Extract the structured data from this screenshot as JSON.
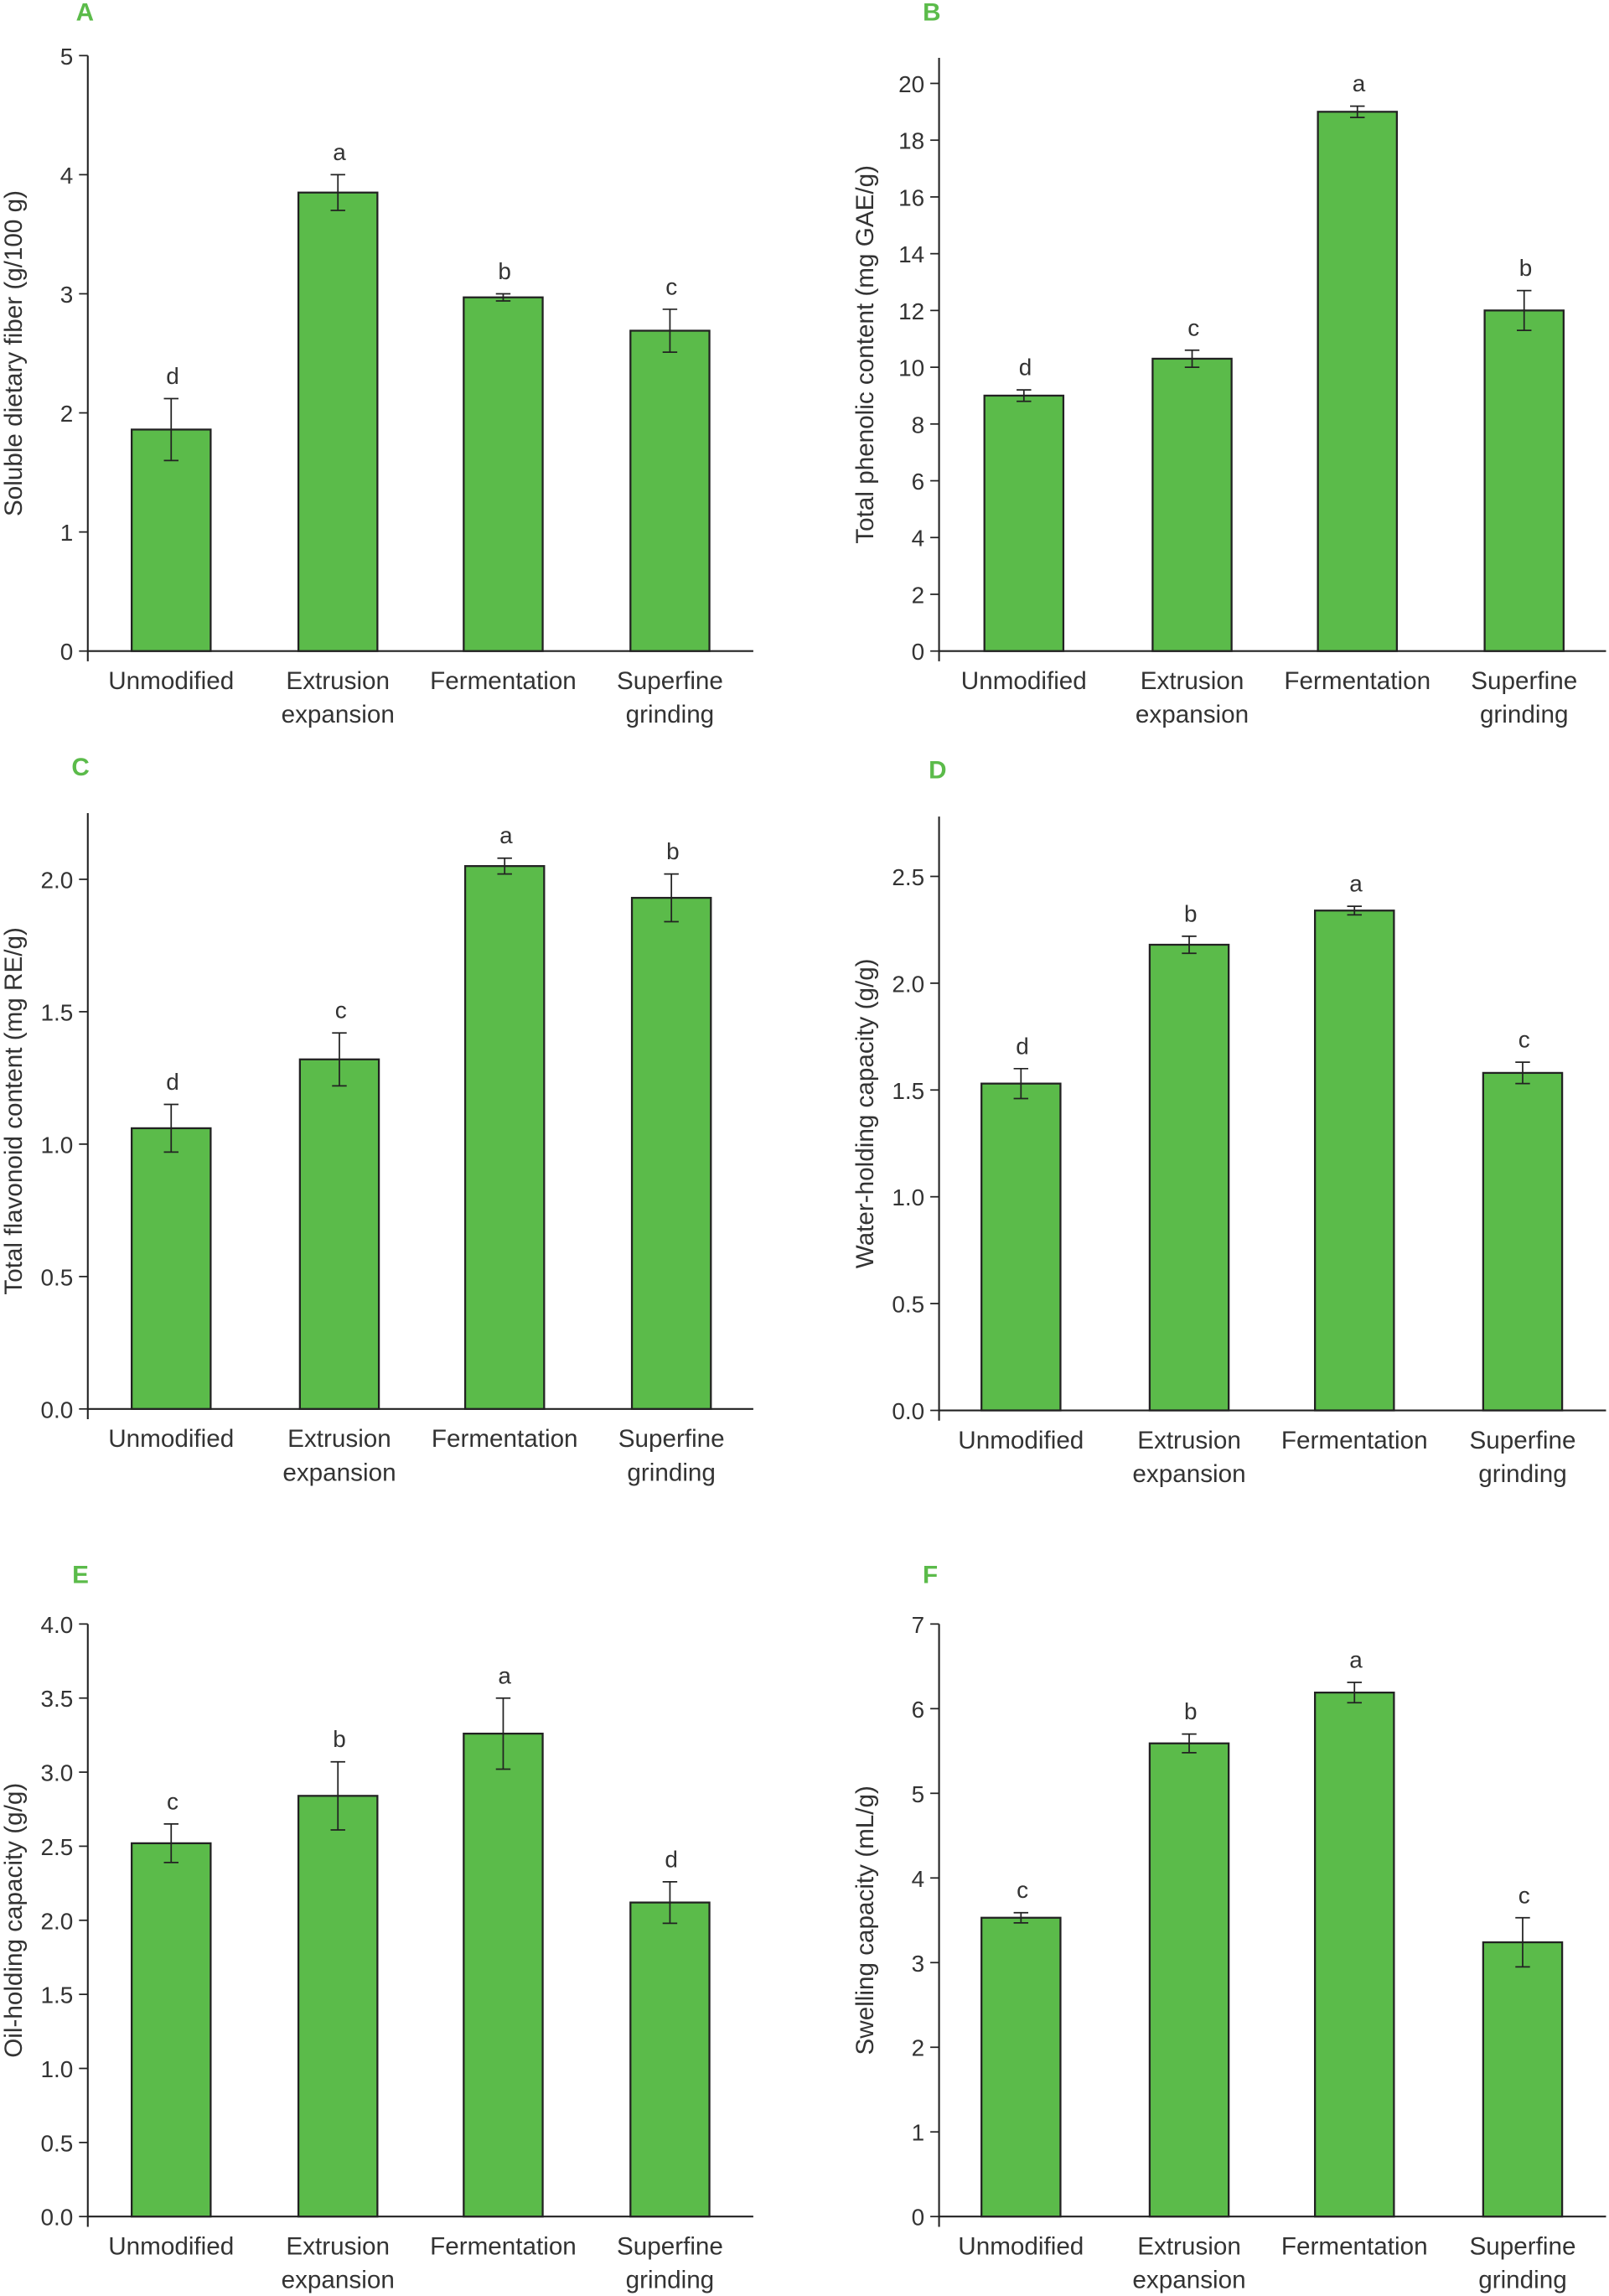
{
  "colors": {
    "bar": "#5bbb4a",
    "stroke": "#222222",
    "panel_label": "#5bbb4a"
  },
  "chart_data": [
    {
      "panel": "A",
      "type": "bar",
      "ylabel": "Soluble dietary fiber (g/100 g)",
      "categories": [
        "Unmodified",
        "Extrusion expansion",
        "Fermentation",
        "Superfine grinding"
      ],
      "values": [
        1.86,
        3.85,
        2.97,
        2.69
      ],
      "errors": [
        0.26,
        0.15,
        0.03,
        0.18
      ],
      "letters": [
        "d",
        "a",
        "b",
        "c"
      ],
      "ylim": [
        0,
        5
      ],
      "yticks": [
        0,
        1,
        2,
        3,
        4,
        5
      ],
      "tick_decimals": 0,
      "axis_top": 5
    },
    {
      "panel": "B",
      "type": "bar",
      "ylabel": "Total phenolic content (mg GAE/g)",
      "categories": [
        "Unmodified",
        "Extrusion expansion",
        "Fermentation",
        "Superfine grinding"
      ],
      "values": [
        9.0,
        10.3,
        19.0,
        12.0
      ],
      "errors": [
        0.2,
        0.3,
        0.2,
        0.7
      ],
      "letters": [
        "d",
        "c",
        "a",
        "b"
      ],
      "ylim": [
        0,
        20
      ],
      "yticks": [
        0,
        2,
        4,
        6,
        8,
        10,
        12,
        14,
        16,
        18,
        20
      ],
      "tick_decimals": 0,
      "axis_top": 20.9
    },
    {
      "panel": "C",
      "type": "bar",
      "ylabel": "Total flavonoid content (mg RE/g)",
      "categories": [
        "Unmodified",
        "Extrusion expansion",
        "Fermentation",
        "Superfine grinding"
      ],
      "values": [
        1.06,
        1.32,
        2.05,
        1.93
      ],
      "errors": [
        0.09,
        0.1,
        0.03,
        0.09
      ],
      "letters": [
        "d",
        "c",
        "a",
        "b"
      ],
      "ylim": [
        0,
        2.0
      ],
      "yticks": [
        0,
        0.5,
        1.0,
        1.5,
        2.0
      ],
      "tick_decimals": 1,
      "axis_top": 2.25
    },
    {
      "panel": "D",
      "type": "bar",
      "ylabel": "Water-holding capacity (g/g)",
      "categories": [
        "Unmodified",
        "Extrusion expansion",
        "Fermentation",
        "Superfine grinding"
      ],
      "values": [
        1.53,
        2.18,
        2.34,
        1.58
      ],
      "errors": [
        0.07,
        0.04,
        0.02,
        0.05
      ],
      "letters": [
        "d",
        "b",
        "a",
        "c"
      ],
      "ylim": [
        0,
        2.5
      ],
      "yticks": [
        0,
        0.5,
        1.0,
        1.5,
        2.0,
        2.5
      ],
      "tick_decimals": 1,
      "axis_top": 2.78
    },
    {
      "panel": "E",
      "type": "bar",
      "ylabel": "Oil-holding capacity (g/g)",
      "categories": [
        "Unmodified",
        "Extrusion expansion",
        "Fermentation",
        "Superfine grinding"
      ],
      "values": [
        2.52,
        2.84,
        3.26,
        2.12
      ],
      "errors": [
        0.13,
        0.23,
        0.24,
        0.14
      ],
      "letters": [
        "c",
        "b",
        "a",
        "d"
      ],
      "ylim": [
        0,
        4.0
      ],
      "yticks": [
        0,
        0.5,
        1.0,
        1.5,
        2.0,
        2.5,
        3.0,
        3.5,
        4.0
      ],
      "tick_decimals": 1,
      "axis_top": 4.0
    },
    {
      "panel": "F",
      "type": "bar",
      "ylabel": "Swelling capacity (mL/g)",
      "categories": [
        "Unmodified",
        "Extrusion expansion",
        "Fermentation",
        "Superfine grinding"
      ],
      "values": [
        3.53,
        5.59,
        6.19,
        3.24
      ],
      "errors": [
        0.06,
        0.11,
        0.12,
        0.29
      ],
      "letters": [
        "c",
        "b",
        "a",
        "c"
      ],
      "ylim": [
        0,
        7
      ],
      "yticks": [
        0,
        1,
        2,
        3,
        4,
        5,
        6,
        7
      ],
      "tick_decimals": 0,
      "axis_top": 7
    }
  ]
}
